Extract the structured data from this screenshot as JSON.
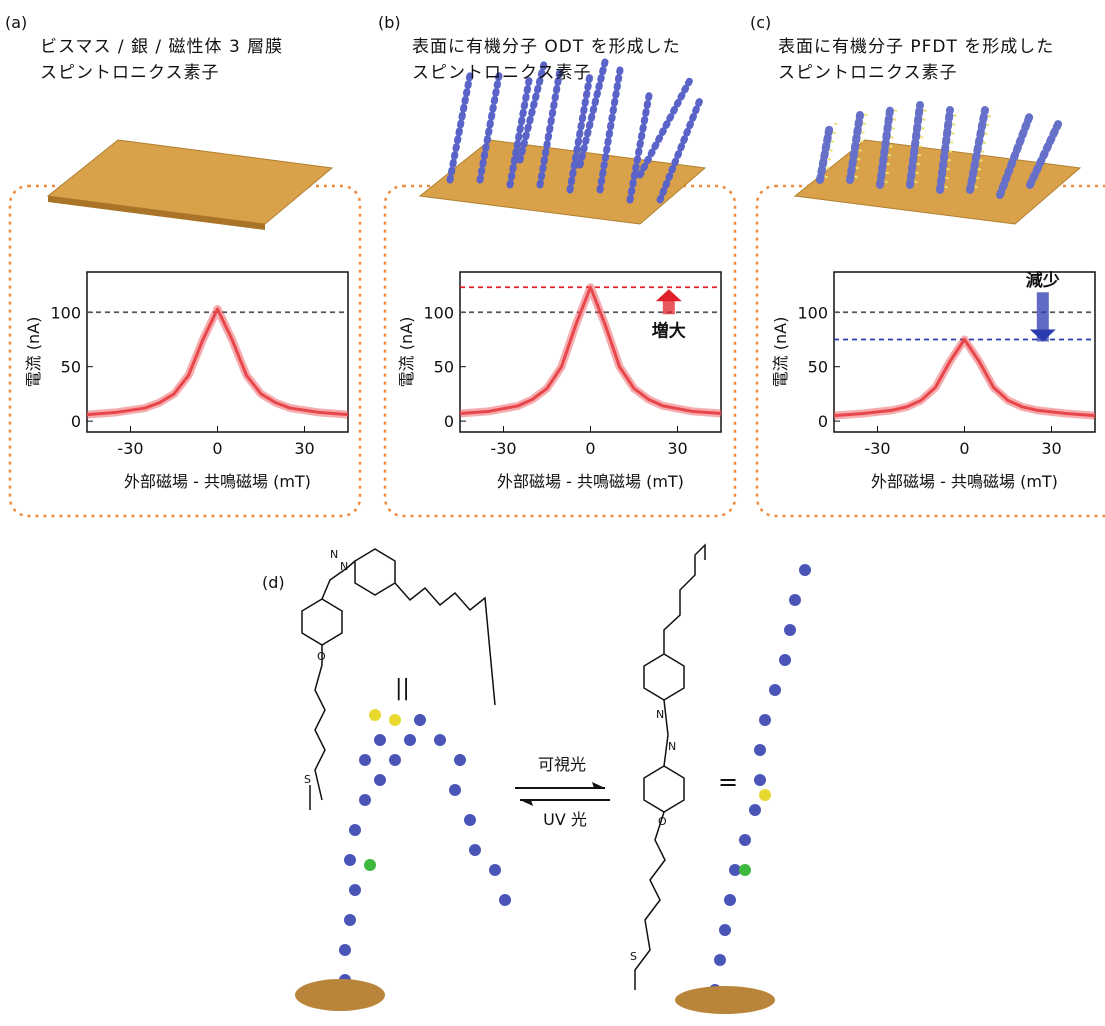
{
  "panel_labels": [
    "(a)",
    "(b)",
    "(c)",
    "(d)"
  ],
  "chart_data": [
    {
      "type": "line",
      "title_lines": [
        "ビスマス / 銀 / 磁性体 3 層膜",
        "スピントロニクス素子"
      ],
      "x": [
        -45,
        -35,
        -25,
        -20,
        -15,
        -10,
        -5,
        0,
        5,
        10,
        15,
        20,
        25,
        35,
        45
      ],
      "values": [
        6,
        8,
        12,
        17,
        25,
        42,
        75,
        103,
        75,
        42,
        25,
        17,
        12,
        8,
        6
      ],
      "color": "#e8464b",
      "xlim": [
        -45,
        45
      ],
      "xticks": [
        -30,
        0,
        30
      ],
      "ylim": [
        -10,
        137
      ],
      "yticks": [
        0,
        50,
        100
      ],
      "xlabel": "外部磁場 - 共鳴磁場 (mT)",
      "ylabel": "電流 (nA)",
      "hlines": [
        {
          "value": 100,
          "color": "#555555"
        }
      ]
    },
    {
      "type": "line",
      "title_lines": [
        "表面に有機分子 ODT を形成した",
        "スピントロニクス素子"
      ],
      "x": [
        -45,
        -35,
        -25,
        -20,
        -15,
        -10,
        -5,
        0,
        5,
        10,
        15,
        20,
        25,
        35,
        45
      ],
      "values": [
        7,
        9,
        14,
        20,
        30,
        50,
        89,
        123,
        89,
        50,
        30,
        20,
        14,
        9,
        7
      ],
      "color": "#e8464b",
      "xlim": [
        -45,
        45
      ],
      "xticks": [
        -30,
        0,
        30
      ],
      "ylim": [
        -10,
        137
      ],
      "yticks": [
        0,
        50,
        100
      ],
      "xlabel": "外部磁場 - 共鳴磁場 (mT)",
      "ylabel": "電流 (nA)",
      "hlines": [
        {
          "value": 100,
          "color": "#555555"
        },
        {
          "value": 123,
          "color": "#e0202a"
        }
      ],
      "annotation": {
        "text": "増大",
        "color": "#e0202a"
      }
    },
    {
      "type": "line",
      "title_lines": [
        "表面に有機分子 PFDT を形成した",
        "スピントロニクス素子"
      ],
      "x": [
        -45,
        -35,
        -25,
        -20,
        -15,
        -10,
        -5,
        0,
        5,
        10,
        15,
        20,
        25,
        35,
        45
      ],
      "values": [
        5,
        7,
        10,
        13,
        19,
        31,
        55,
        75,
        55,
        31,
        19,
        13,
        10,
        7,
        5
      ],
      "color": "#e8464b",
      "xlim": [
        -45,
        45
      ],
      "xticks": [
        -30,
        0,
        30
      ],
      "ylim": [
        -10,
        137
      ],
      "yticks": [
        0,
        50,
        100
      ],
      "xlabel": "外部磁場 - 共鳴磁場 (mT)",
      "ylabel": "電流 (nA)",
      "hlines": [
        {
          "value": 100,
          "color": "#555555"
        },
        {
          "value": 75,
          "color": "#2b3bb0"
        }
      ],
      "annotation": {
        "text": "減少",
        "color": "#2b3bb0"
      }
    }
  ],
  "diagram": {
    "visible_light": "可視光",
    "uv_light": "UV 光",
    "equals": "=",
    "parallel": "||",
    "atoms": [
      "N",
      "N",
      "O",
      "S",
      "N",
      "N",
      "O",
      "S"
    ]
  }
}
